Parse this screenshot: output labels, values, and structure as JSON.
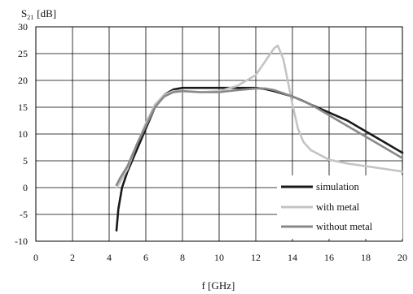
{
  "chart_data": {
    "type": "line",
    "ylabel_main": "S",
    "ylabel_sub": "21",
    "ylabel_unit": "[dB]",
    "xlabel": "f [GHz]",
    "xlim": [
      0,
      20
    ],
    "ylim": [
      -10,
      30
    ],
    "xticks": [
      0,
      2,
      4,
      6,
      8,
      10,
      12,
      14,
      16,
      18,
      20
    ],
    "yticks": [
      -10,
      -5,
      0,
      5,
      10,
      15,
      20,
      25,
      30
    ],
    "grid": true,
    "legend_position": "bottom-right",
    "series": [
      {
        "name": "simulation",
        "color": "#1a1a1a",
        "points": [
          [
            4.4,
            -8
          ],
          [
            4.5,
            -4
          ],
          [
            4.7,
            0
          ],
          [
            5,
            3
          ],
          [
            5.5,
            7
          ],
          [
            6,
            11
          ],
          [
            6.5,
            15
          ],
          [
            7,
            17.3
          ],
          [
            7.5,
            18.3
          ],
          [
            8,
            18.6
          ],
          [
            9,
            18.6
          ],
          [
            10,
            18.6
          ],
          [
            11,
            18.6
          ],
          [
            12,
            18.6
          ],
          [
            12.5,
            18.4
          ],
          [
            13,
            18
          ],
          [
            13.5,
            17.5
          ],
          [
            14,
            17
          ],
          [
            14.5,
            16.3
          ],
          [
            15,
            15.5
          ],
          [
            16,
            14
          ],
          [
            17,
            12.5
          ],
          [
            18,
            10.5
          ],
          [
            19,
            8.5
          ],
          [
            20,
            6.5
          ]
        ]
      },
      {
        "name": "with metal",
        "color": "#c4c4c4",
        "points": [
          [
            4.4,
            0
          ],
          [
            4.6,
            1
          ],
          [
            5,
            3.5
          ],
          [
            5.5,
            8
          ],
          [
            6,
            12
          ],
          [
            6.5,
            15.5
          ],
          [
            7,
            17.3
          ],
          [
            7.5,
            18
          ],
          [
            8,
            18
          ],
          [
            9,
            17.8
          ],
          [
            10,
            18
          ],
          [
            11,
            19
          ],
          [
            12,
            21
          ],
          [
            12.5,
            23.5
          ],
          [
            13,
            26
          ],
          [
            13.2,
            26.5
          ],
          [
            13.5,
            24
          ],
          [
            13.8,
            19
          ],
          [
            14,
            15.5
          ],
          [
            14.3,
            11
          ],
          [
            14.6,
            8.5
          ],
          [
            15,
            7
          ],
          [
            16,
            5.2
          ],
          [
            17,
            4.5
          ],
          [
            18,
            4
          ],
          [
            19,
            3.5
          ],
          [
            20,
            3
          ]
        ]
      },
      {
        "name": "without metal",
        "color": "#888888",
        "points": [
          [
            4.4,
            0.5
          ],
          [
            4.6,
            1.8
          ],
          [
            5,
            4
          ],
          [
            5.5,
            8
          ],
          [
            6,
            11.5
          ],
          [
            6.5,
            15
          ],
          [
            7,
            17
          ],
          [
            7.5,
            17.8
          ],
          [
            8,
            18
          ],
          [
            9,
            17.8
          ],
          [
            10,
            17.8
          ],
          [
            11,
            18.2
          ],
          [
            12,
            18.5
          ],
          [
            12.5,
            18.5
          ],
          [
            13,
            18.2
          ],
          [
            14,
            17
          ],
          [
            15,
            15.5
          ],
          [
            16,
            13.5
          ],
          [
            17,
            11.5
          ],
          [
            18,
            9.5
          ],
          [
            19,
            7.5
          ],
          [
            20,
            5.5
          ]
        ]
      }
    ]
  }
}
